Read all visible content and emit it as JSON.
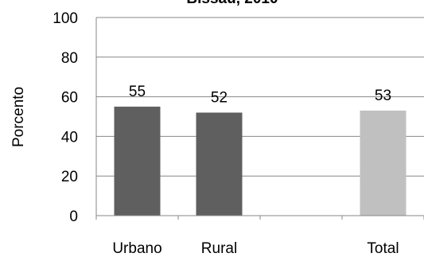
{
  "chart_data": {
    "type": "bar",
    "title": "Bissau, 2010",
    "xlabel": "",
    "ylabel": "Porcento",
    "ylim": [
      0,
      100
    ],
    "yticks": [
      0,
      20,
      40,
      60,
      80,
      100
    ],
    "grid": true,
    "categories": [
      "Urbano",
      "Rural",
      "",
      "Total"
    ],
    "values": [
      55,
      52,
      null,
      53
    ],
    "data_labels": [
      "55",
      "52",
      "",
      "53"
    ],
    "colors": [
      "#5f5f5f",
      "#5f5f5f",
      null,
      "#c0c0c0"
    ]
  }
}
